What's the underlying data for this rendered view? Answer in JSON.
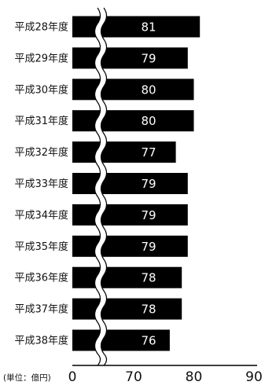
{
  "chart_data": {
    "type": "bar",
    "orientation": "horizontal",
    "categories": [
      "平成28年度",
      "平成29年度",
      "平成30年度",
      "平成31年度",
      "平成32年度",
      "平成33年度",
      "平成34年度",
      "平成35年度",
      "平成36年度",
      "平成37年度",
      "平成38年度"
    ],
    "values": [
      81,
      79,
      80,
      80,
      77,
      79,
      79,
      79,
      78,
      78,
      76
    ],
    "data_labels": [
      "81",
      "79",
      "80",
      "80",
      "77",
      "79",
      "79",
      "79",
      "78",
      "78",
      "76"
    ],
    "unit_label": "(単位：億円)",
    "axis_break": true,
    "x_ticks": [
      {
        "value": 0,
        "label": "0"
      },
      {
        "value": 70,
        "label": "70"
      },
      {
        "value": 80,
        "label": "80"
      },
      {
        "value": 90,
        "label": "90"
      }
    ],
    "xlim_after_break": [
      60,
      90
    ],
    "grid": false,
    "bar_color": "#000000",
    "label_color": "#ffffff"
  }
}
